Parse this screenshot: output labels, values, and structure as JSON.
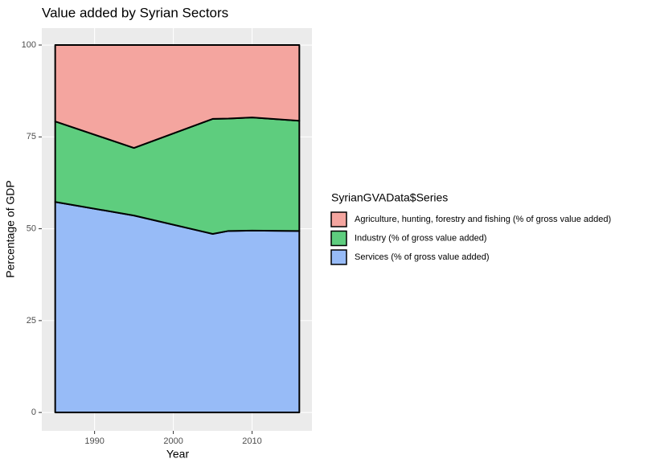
{
  "chart_data": {
    "type": "stacked-area",
    "title": "Value added by Syrian Sectors",
    "x_label": "Year",
    "y_label": "Percentage of GDP",
    "legend_title": "SyrianGVAData$Series",
    "x": [
      1985,
      1995,
      2005,
      2007,
      2010,
      2016
    ],
    "series": [
      {
        "name": "Agriculture, hunting, forestry and fishing (% of gross value added)",
        "color": "#f4a59f",
        "values": [
          20.8,
          28.0,
          20.1,
          20.0,
          19.7,
          20.6
        ]
      },
      {
        "name": "Industry (% of gross value added)",
        "color": "#5ecd7e",
        "values": [
          21.9,
          18.4,
          31.3,
          30.6,
          30.8,
          30.0
        ]
      },
      {
        "name": "Services (% of gross value added)",
        "color": "#97bbf7",
        "values": [
          57.3,
          53.6,
          48.6,
          49.4,
          49.5,
          49.4
        ]
      }
    ],
    "xlim": [
      1983.3,
      2017.6
    ],
    "ylim": [
      -5,
      104.6
    ],
    "xticks": [
      1990,
      2000,
      2010
    ],
    "yticks": [
      0,
      25,
      50,
      75,
      100
    ],
    "grid": true,
    "legend_position": "right"
  }
}
